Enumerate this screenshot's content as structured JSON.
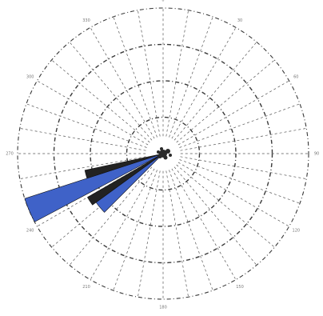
{
  "chart_data": {
    "type": "polar-bar",
    "grid": true,
    "ring_radii_fraction": [
      0.25,
      0.5,
      0.75,
      1.0
    ],
    "direction_tick_labels": [
      {
        "angle": 0,
        "label": "0"
      },
      {
        "angle": 30,
        "label": "30"
      },
      {
        "angle": 60,
        "label": "60"
      },
      {
        "angle": 90,
        "label": "90"
      },
      {
        "angle": 120,
        "label": "120"
      },
      {
        "angle": 150,
        "label": "150"
      },
      {
        "angle": 180,
        "label": "180"
      },
      {
        "angle": 210,
        "label": "210"
      },
      {
        "angle": 240,
        "label": "240"
      },
      {
        "angle": 270,
        "label": "270"
      },
      {
        "angle": 300,
        "label": "300"
      },
      {
        "angle": 330,
        "label": "330"
      }
    ],
    "sectors": [
      {
        "start_angle": 242,
        "end_angle": 252,
        "value_fraction": 1.0,
        "color": "#3f62c8"
      },
      {
        "start_angle": 252,
        "end_angle": 258,
        "value_fraction": 0.55,
        "color": "#222222"
      },
      {
        "start_angle": 225,
        "end_angle": 234,
        "value_fraction": 0.57,
        "color": "#3f62c8"
      },
      {
        "start_angle": 234,
        "end_angle": 240,
        "value_fraction": 0.6,
        "color": "#222222"
      }
    ],
    "colors": {
      "primary_sector": "#3f62c8",
      "secondary_sector": "#222222",
      "grid": "#3a3a3a"
    }
  }
}
